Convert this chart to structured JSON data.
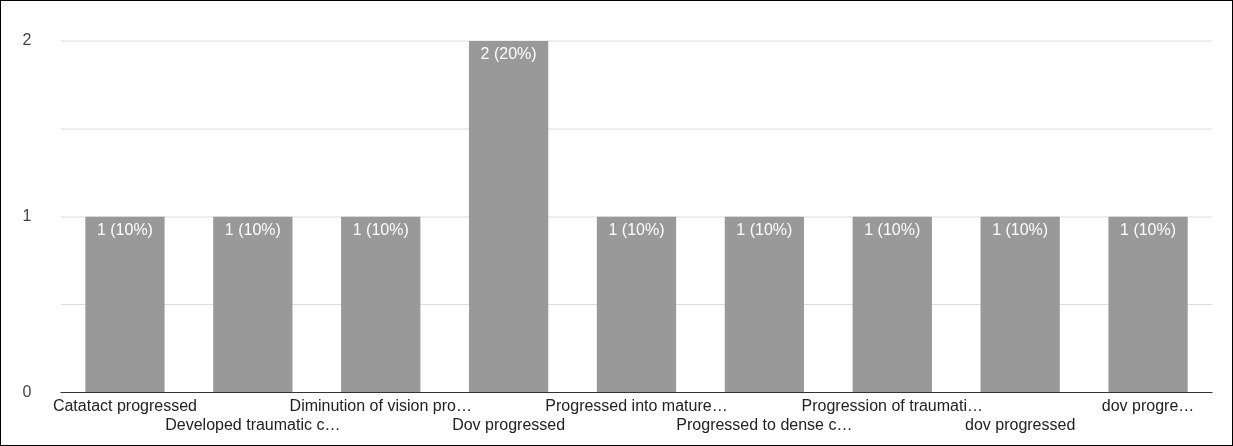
{
  "chart_data": {
    "type": "bar",
    "categories": [
      "Catatact progressed",
      "Developed traumatic c…",
      "Diminution of vision pro…",
      "Dov progressed",
      "Progressed into mature…",
      "Progressed to dense c…",
      "Progression of traumati…",
      "dov progressed",
      "dov progre…"
    ],
    "values": [
      1,
      1,
      1,
      2,
      1,
      1,
      1,
      1,
      1
    ],
    "value_labels": [
      "1 (10%)",
      "1 (10%)",
      "1 (10%)",
      "2 (20%)",
      "1 (10%)",
      "1 (10%)",
      "1 (10%)",
      "1 (10%)",
      "1 (10%)"
    ],
    "color": "#999999",
    "ylim": [
      0,
      2
    ],
    "yticks": [
      0,
      {
        "value": 0.5,
        "label": null
      },
      1,
      {
        "value": 1.5,
        "label": null
      },
      2
    ],
    "grid": "y"
  }
}
